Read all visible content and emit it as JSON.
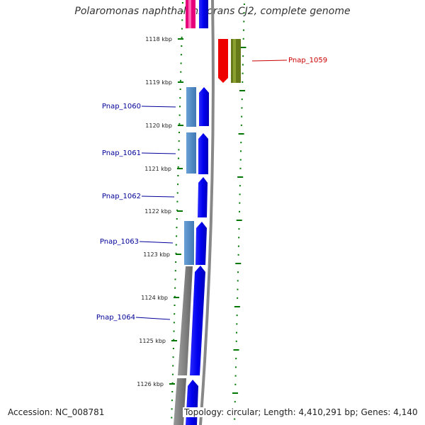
{
  "title": "Polaromonas naphthalenivorans CJ2, complete genome",
  "footer": {
    "accession": "Accession: NC_008781",
    "info": "Topology: circular; Length: 4,410,291 bp; Genes: 4,140"
  },
  "ticks": [
    "1118 kbp",
    "1119 kbp",
    "1120 kbp",
    "1121 kbp",
    "1122 kbp",
    "1123 kbp",
    "1124 kbp",
    "1125 kbp",
    "1126 kbp"
  ],
  "genes": [
    {
      "label": "Pnap_1059",
      "color": "#cc0000"
    },
    {
      "label": "Pnap_1060",
      "color": "#000099"
    },
    {
      "label": "Pnap_1061",
      "color": "#000099"
    },
    {
      "label": "Pnap_1062",
      "color": "#000099"
    },
    {
      "label": "Pnap_1063",
      "color": "#000099"
    },
    {
      "label": "Pnap_1064",
      "color": "#000099"
    }
  ],
  "colors": {
    "cds": "#0000ee",
    "gene_bar": "#4a86c0",
    "grey_bar": "#777777",
    "backbone": "#888888",
    "tick": "#007700",
    "reverse_red": "#ee0000",
    "reverse_olive": "#667a1a",
    "pink": "#e6007a"
  }
}
